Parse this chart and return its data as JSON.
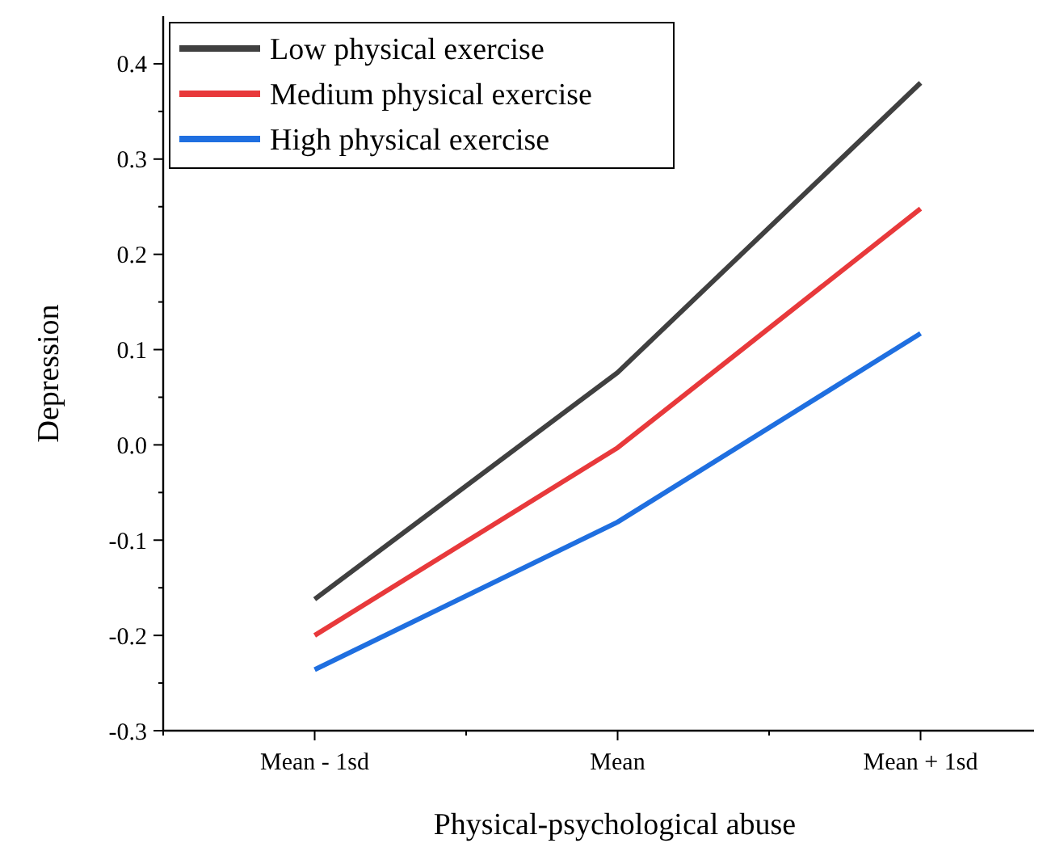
{
  "chart_data": {
    "type": "line",
    "xlabel": "Physical-psychological abuse",
    "ylabel": "Depression",
    "categories": [
      "Mean - 1sd",
      "Mean",
      "Mean + 1sd"
    ],
    "series": [
      {
        "name": "Low physical exercise",
        "color": "#404040",
        "values": [
          -0.162,
          0.076,
          0.38
        ]
      },
      {
        "name": "Medium physical exercise",
        "color": "#e8393b",
        "values": [
          -0.2,
          -0.003,
          0.248
        ]
      },
      {
        "name": "High physical exercise",
        "color": "#1f6fe0",
        "values": [
          -0.236,
          -0.081,
          0.117
        ]
      }
    ],
    "ylim": [
      -0.3,
      0.45
    ],
    "yticks": [
      {
        "value": -0.3,
        "label": "-0.3"
      },
      {
        "value": -0.2,
        "label": "-0.2"
      },
      {
        "value": -0.1,
        "label": "-0.1"
      },
      {
        "value": 0,
        "label": "0.0"
      },
      {
        "value": 0.1,
        "label": "0.1"
      },
      {
        "value": 0.2,
        "label": "0.2"
      },
      {
        "value": 0.3,
        "label": "0.3"
      },
      {
        "value": 0.4,
        "label": "0.4"
      }
    ],
    "grid": false,
    "legend": "top left",
    "marker": "none",
    "line_style": "solid"
  }
}
